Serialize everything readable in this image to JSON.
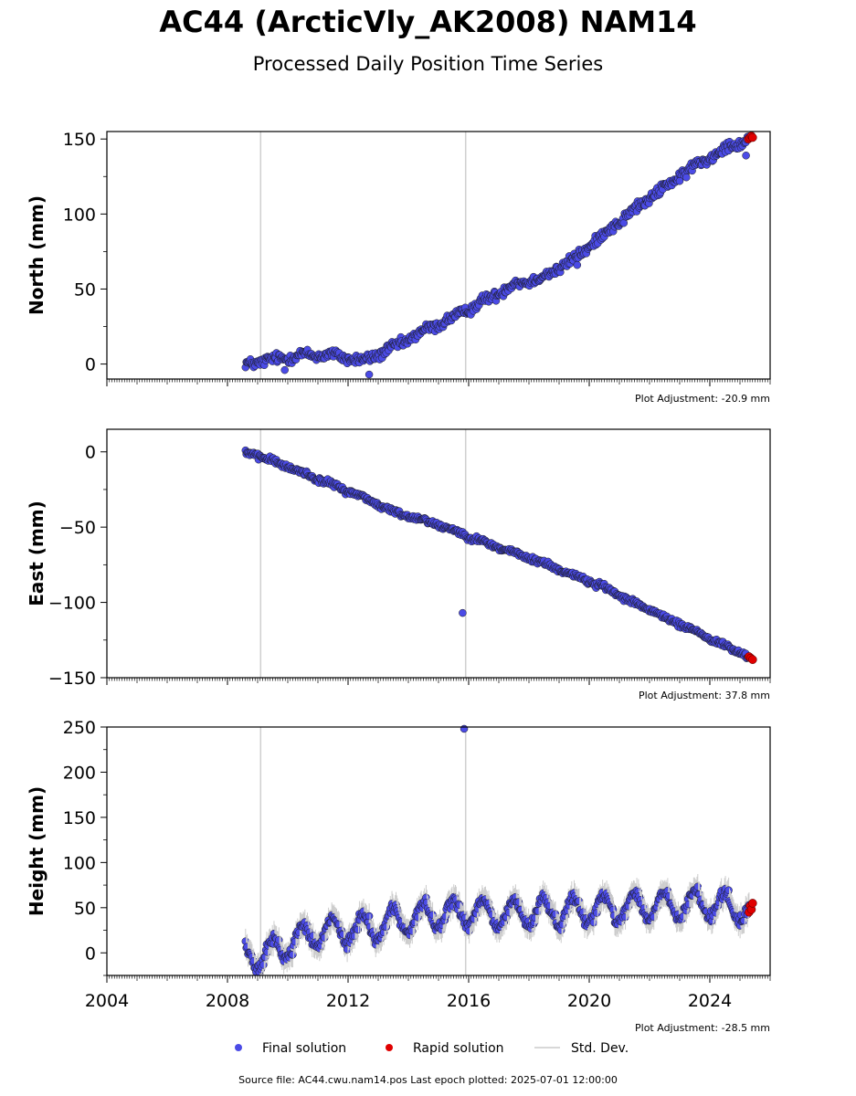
{
  "title": "AC44 (ArcticVly_AK2008) NAM14",
  "subtitle": "Processed Daily Position Time Series",
  "source_line": "Source file: AC44.cwu.nam14.pos  Last epoch plotted: 2025-07-01 12:00:00",
  "colors": {
    "final": "#4b4be6",
    "rapid": "#e00000",
    "stddev": "#cccccc",
    "marker_edge": "#1a1a1a",
    "event_line": "#cfcfcf"
  },
  "chart_data": [
    {
      "type": "scatter",
      "ylabel": "North (mm)",
      "ylim": [
        -10,
        155
      ],
      "yticks": [
        0,
        50,
        100,
        150
      ],
      "yticklabels": [
        "0",
        "50",
        "100",
        "150"
      ],
      "xlim": [
        2004.0,
        2026.0
      ],
      "xticks": [
        2004,
        2008,
        2012,
        2016,
        2020,
        2024
      ],
      "show_xticklabels": false,
      "event_lines": [
        2009.1,
        2015.9
      ],
      "adjustment": "Plot Adjustment: -20.9 mm",
      "trend": [
        [
          2008.6,
          0
        ],
        [
          2009.5,
          3
        ],
        [
          2010.5,
          6
        ],
        [
          2011.5,
          6
        ],
        [
          2012.5,
          2
        ],
        [
          2013.5,
          11
        ],
        [
          2014.5,
          22
        ],
        [
          2015.5,
          31
        ],
        [
          2016.5,
          42
        ],
        [
          2017.5,
          53
        ],
        [
          2018.5,
          58
        ],
        [
          2019.5,
          70
        ],
        [
          2020.5,
          87
        ],
        [
          2021.5,
          103
        ],
        [
          2022.5,
          118
        ],
        [
          2023.5,
          132
        ],
        [
          2024.5,
          144
        ],
        [
          2025.3,
          150
        ]
      ],
      "noise": 2.5,
      "seasonal": 1.0,
      "outliers": [
        [
          2009.9,
          -4
        ],
        [
          2012.7,
          -7
        ],
        [
          2019.6,
          66
        ],
        [
          2025.2,
          139
        ],
        [
          2023.0,
          122
        ]
      ],
      "rapid_points": [
        [
          2025.28,
          150
        ],
        [
          2025.33,
          151
        ],
        [
          2025.38,
          152
        ],
        [
          2025.42,
          151
        ]
      ],
      "show_stddev": false,
      "series": [
        {
          "name": "Final solution",
          "marker": "circle"
        },
        {
          "name": "Rapid solution",
          "marker": "circle"
        }
      ]
    },
    {
      "type": "scatter",
      "ylabel": "East (mm)",
      "ylim": [
        -150,
        15
      ],
      "yticks": [
        0,
        -50,
        -100,
        -150
      ],
      "yticklabels": [
        "0",
        "−50",
        "−100",
        "−150"
      ],
      "xlim": [
        2004.0,
        2026.0
      ],
      "xticks": [
        2004,
        2008,
        2012,
        2016,
        2020,
        2024
      ],
      "show_xticklabels": false,
      "event_lines": [
        2009.1,
        2015.9
      ],
      "adjustment": "Plot Adjustment: 37.8 mm",
      "trend": [
        [
          2008.6,
          0
        ],
        [
          2009.5,
          -6
        ],
        [
          2010.5,
          -14
        ],
        [
          2011.5,
          -22
        ],
        [
          2012.5,
          -30
        ],
        [
          2013.5,
          -40
        ],
        [
          2014.5,
          -45
        ],
        [
          2015.5,
          -52
        ],
        [
          2016.5,
          -60
        ],
        [
          2017.5,
          -67
        ],
        [
          2018.5,
          -74
        ],
        [
          2019.5,
          -82
        ],
        [
          2020.5,
          -90
        ],
        [
          2021.5,
          -100
        ],
        [
          2022.5,
          -110
        ],
        [
          2023.5,
          -119
        ],
        [
          2024.5,
          -129
        ],
        [
          2025.3,
          -136
        ]
      ],
      "noise": 1.4,
      "seasonal": 0.6,
      "outliers": [
        [
          2015.8,
          -107
        ]
      ],
      "rapid_points": [
        [
          2025.3,
          -136
        ],
        [
          2025.36,
          -137
        ],
        [
          2025.42,
          -138
        ]
      ],
      "show_stddev": false
    },
    {
      "type": "scatter",
      "ylabel": "Height (mm)",
      "ylim": [
        -25,
        250
      ],
      "yticks": [
        0,
        50,
        100,
        150,
        200,
        250
      ],
      "yticklabels": [
        "0",
        "50",
        "100",
        "150",
        "200",
        "250"
      ],
      "xlim": [
        2004.0,
        2026.0
      ],
      "xticks": [
        2004,
        2008,
        2012,
        2016,
        2020,
        2024
      ],
      "xticklabels": [
        "2004",
        "2008",
        "2012",
        "2016",
        "2020",
        "2024"
      ],
      "show_xticklabels": true,
      "event_lines": [
        2009.1,
        2015.9
      ],
      "adjustment": "Plot Adjustment: -28.5 mm",
      "trend": [
        [
          2008.6,
          0
        ],
        [
          2009.2,
          -5
        ],
        [
          2010.0,
          10
        ],
        [
          2011.0,
          22
        ],
        [
          2012.0,
          25
        ],
        [
          2013.0,
          30
        ],
        [
          2014.0,
          38
        ],
        [
          2015.0,
          42
        ],
        [
          2016.0,
          45
        ],
        [
          2017.0,
          42
        ],
        [
          2018.0,
          45
        ],
        [
          2019.0,
          46
        ],
        [
          2020.0,
          48
        ],
        [
          2021.0,
          50
        ],
        [
          2022.0,
          52
        ],
        [
          2023.0,
          52
        ],
        [
          2024.0,
          55
        ],
        [
          2025.3,
          48
        ]
      ],
      "noise": 5,
      "seasonal": 15,
      "outliers": [
        [
          2015.85,
          248
        ]
      ],
      "rapid_points": [
        [
          2025.3,
          45
        ],
        [
          2025.34,
          52
        ],
        [
          2025.38,
          48
        ],
        [
          2025.42,
          55
        ]
      ],
      "show_stddev": true
    }
  ],
  "legend": [
    {
      "label": "Final solution"
    },
    {
      "label": "Rapid solution"
    },
    {
      "label": "Std. Dev."
    }
  ]
}
